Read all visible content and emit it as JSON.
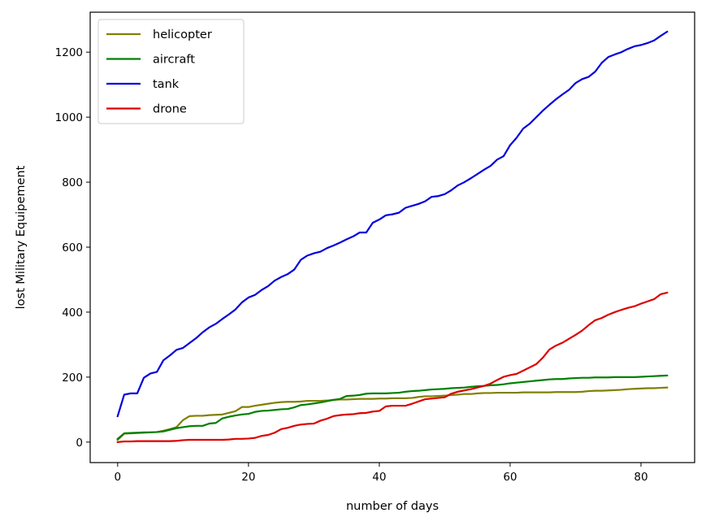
{
  "chart_data": {
    "type": "line",
    "title": "",
    "xlabel": "number of days",
    "ylabel": "lost Military Equipement",
    "xlim": [
      -4.2,
      88.2
    ],
    "ylim": [
      -63,
      1323
    ],
    "xticks": [
      0,
      20,
      40,
      60,
      80
    ],
    "yticks": [
      0,
      200,
      400,
      600,
      800,
      1000,
      1200
    ],
    "grid": false,
    "legend_position": "top-left",
    "x": [
      0,
      1,
      2,
      3,
      4,
      5,
      6,
      7,
      8,
      9,
      10,
      11,
      12,
      13,
      14,
      15,
      16,
      17,
      18,
      19,
      20,
      21,
      22,
      23,
      24,
      25,
      26,
      27,
      28,
      29,
      30,
      31,
      32,
      33,
      34,
      35,
      36,
      37,
      38,
      39,
      40,
      41,
      42,
      43,
      44,
      45,
      46,
      47,
      48,
      49,
      50,
      51,
      52,
      53,
      54,
      55,
      56,
      57,
      58,
      59,
      60,
      61,
      62,
      63,
      64,
      65,
      66,
      67,
      68,
      69,
      70,
      71,
      72,
      73,
      74,
      75,
      76,
      77,
      78,
      79,
      80,
      81,
      82,
      83,
      84
    ],
    "series": [
      {
        "name": "helicopter",
        "color": "#808000",
        "values": [
          7,
          26,
          27,
          28,
          29,
          30,
          31,
          35,
          40,
          46,
          68,
          80,
          81,
          81,
          83,
          84,
          85,
          90,
          95,
          108,
          108,
          112,
          115,
          118,
          121,
          123,
          124,
          124,
          125,
          127,
          127,
          127,
          128,
          130,
          131,
          131,
          132,
          133,
          133,
          133,
          134,
          134,
          135,
          135,
          135,
          136,
          139,
          141,
          141,
          142,
          143,
          145,
          146,
          148,
          148,
          150,
          151,
          151,
          152,
          152,
          152,
          152,
          153,
          153,
          153,
          153,
          153,
          154,
          154,
          154,
          154,
          155,
          157,
          158,
          158,
          159,
          160,
          161,
          163,
          164,
          165,
          166,
          166,
          167,
          168
        ]
      },
      {
        "name": "aircraft",
        "color": "#008000",
        "values": [
          10,
          27,
          28,
          29,
          30,
          30,
          31,
          33,
          38,
          43,
          46,
          49,
          50,
          50,
          57,
          59,
          73,
          78,
          82,
          85,
          87,
          93,
          96,
          97,
          99,
          101,
          102,
          107,
          114,
          116,
          119,
          122,
          126,
          130,
          133,
          142,
          143,
          145,
          149,
          150,
          150,
          150,
          151,
          152,
          155,
          157,
          158,
          160,
          162,
          163,
          164,
          166,
          167,
          168,
          170,
          172,
          173,
          175,
          176,
          178,
          181,
          183,
          185,
          187,
          189,
          191,
          193,
          194,
          194,
          196,
          197,
          198,
          198,
          199,
          199,
          199,
          200,
          200,
          200,
          200,
          201,
          202,
          203,
          204,
          205
        ]
      },
      {
        "name": "tank",
        "color": "#0000dd",
        "values": [
          80,
          146,
          150,
          150,
          198,
          211,
          216,
          252,
          267,
          284,
          290,
          305,
          320,
          338,
          353,
          364,
          379,
          393,
          408,
          430,
          445,
          453,
          468,
          480,
          497,
          508,
          517,
          531,
          561,
          574,
          581,
          586,
          597,
          605,
          614,
          624,
          633,
          645,
          645,
          675,
          685,
          698,
          701,
          706,
          721,
          727,
          733,
          741,
          755,
          757,
          763,
          775,
          790,
          800,
          812,
          825,
          838,
          850,
          869,
          880,
          914,
          937,
          965,
          980,
          1000,
          1020,
          1038,
          1055,
          1070,
          1084,
          1105,
          1117,
          1124,
          1140,
          1167,
          1185,
          1193,
          1200,
          1210,
          1218,
          1222,
          1228,
          1236,
          1250,
          1263
        ]
      },
      {
        "name": "drone",
        "color": "#dd0000",
        "values": [
          0,
          2,
          2,
          3,
          3,
          3,
          3,
          3,
          3,
          4,
          6,
          7,
          7,
          7,
          7,
          7,
          7,
          8,
          10,
          10,
          11,
          13,
          19,
          22,
          29,
          40,
          44,
          50,
          54,
          56,
          57,
          66,
          72,
          80,
          83,
          85,
          86,
          89,
          90,
          94,
          96,
          110,
          112,
          112,
          112,
          118,
          125,
          132,
          134,
          136,
          138,
          149,
          155,
          159,
          163,
          168,
          173,
          180,
          191,
          201,
          206,
          210,
          220,
          230,
          240,
          260,
          285,
          297,
          306,
          318,
          330,
          343,
          360,
          375,
          382,
          392,
          400,
          407,
          413,
          418,
          426,
          433,
          440,
          455,
          460
        ]
      }
    ]
  }
}
